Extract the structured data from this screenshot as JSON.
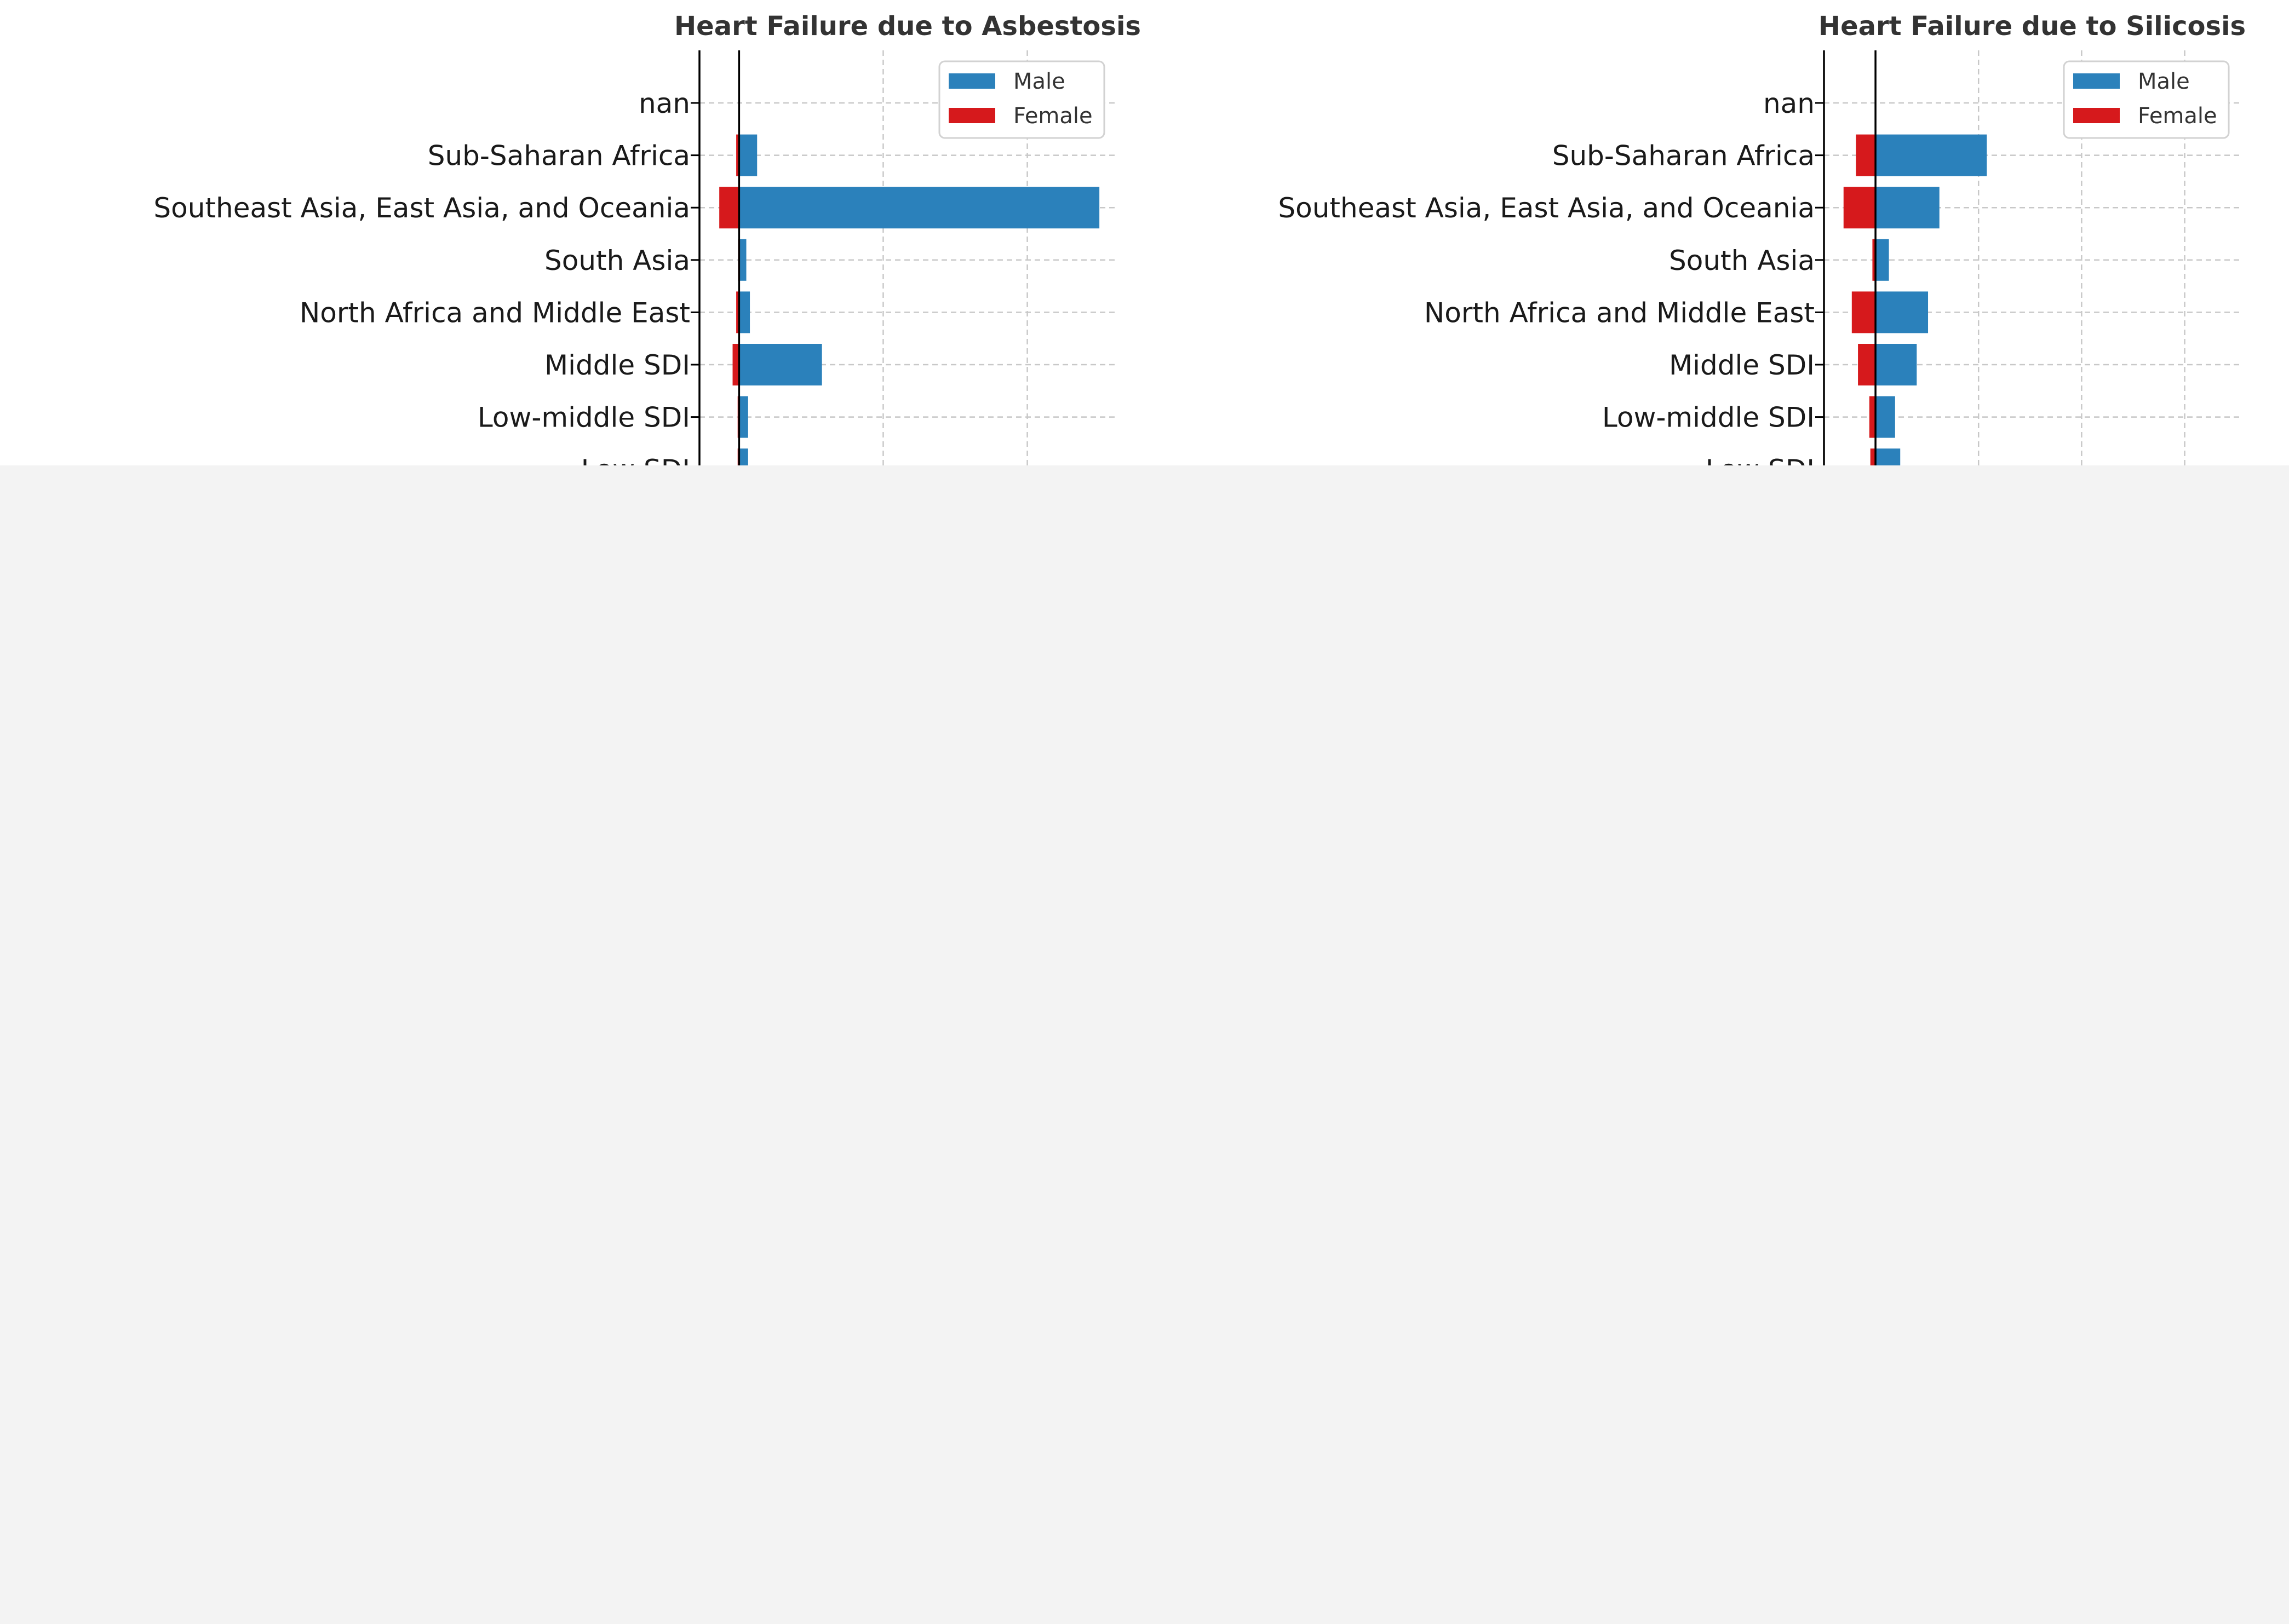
{
  "colors": {
    "male": "#2b81bb",
    "female": "#d6191c",
    "page_background": "#f3f3f3",
    "plot_background": "#ffffff"
  },
  "chart_data": [
    {
      "type": "bar",
      "orientation": "horizontal-diverging",
      "title": "Heart Failure due to Asbestosis",
      "categories": [
        "nan",
        "Sub-Saharan Africa",
        "Southeast Asia, East Asia, and Oceania",
        "South Asia",
        "North Africa and Middle East",
        "Middle SDI",
        "Low-middle SDI",
        "Low SDI"
      ],
      "series": [
        {
          "name": "Male",
          "values": [
            0,
            0.5,
            10.0,
            0.2,
            0.3,
            2.3,
            0.25,
            0.25
          ]
        },
        {
          "name": "Female",
          "values": [
            0,
            -0.08,
            -0.55,
            -0.03,
            -0.08,
            -0.18,
            -0.04,
            -0.04
          ]
        }
      ],
      "xlim": [
        -1.1,
        10.5
      ],
      "grid_x": [
        4,
        8
      ],
      "legend": [
        "Male",
        "Female"
      ],
      "legend_position": "top-right",
      "xlabel": "",
      "ylabel": ""
    },
    {
      "type": "bar",
      "orientation": "horizontal-diverging",
      "title": "Heart Failure due to Silicosis",
      "categories": [
        "nan",
        "Sub-Saharan Africa",
        "Southeast Asia, East Asia, and Oceania",
        "South Asia",
        "North Africa and Middle East",
        "Middle SDI",
        "Low-middle SDI",
        "Low SDI"
      ],
      "series": [
        {
          "name": "Male",
          "values": [
            0,
            10.8,
            6.2,
            1.3,
            5.1,
            4.0,
            1.9,
            2.4
          ]
        },
        {
          "name": "Female",
          "values": [
            0,
            -1.9,
            -3.1,
            -0.3,
            -2.3,
            -1.7,
            -0.6,
            -0.5
          ]
        }
      ],
      "xlim": [
        -5,
        35.5
      ],
      "grid_x": [
        10,
        20,
        30
      ],
      "legend": [
        "Male",
        "Female"
      ],
      "legend_position": "top-right",
      "xlabel": "",
      "ylabel": ""
    }
  ]
}
